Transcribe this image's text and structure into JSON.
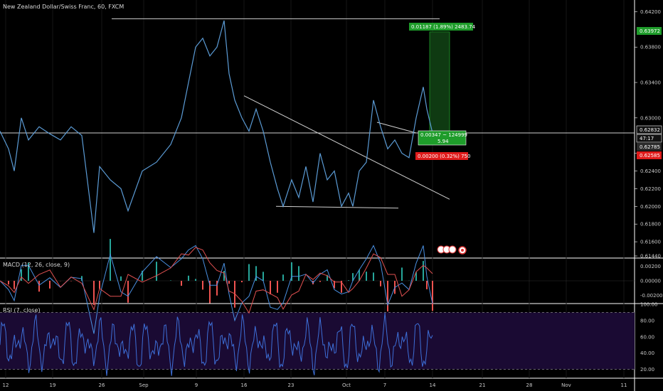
{
  "header": {
    "symbol_title": "New Zealand Dollar/Swiss Franc, 60, FXCM"
  },
  "colors": {
    "background": "#000000",
    "grid": "#2a2a2a",
    "candle_line": "#5b9bd5",
    "trendline": "#d0d0d0",
    "profit_zone": "#0f3a12",
    "profit_label": "#1e9c2a",
    "loss_label": "#e01b1b",
    "macd_line": "#4a90e2",
    "signal_line": "#e05050",
    "rsi_line": "#3d6fd8",
    "rsi_band": "#1a0a33"
  },
  "chart_data": [
    {
      "type": "line",
      "title": "New Zealand Dollar/Swiss Franc, 60, FXCM",
      "x_ticks": [
        "12",
        "19",
        "26",
        "Sep",
        "9",
        "16",
        "23",
        "Oct",
        "7",
        "14",
        "21",
        "28",
        "Nov",
        "11"
      ],
      "y_ticks": [
        "0.64200",
        "0.63800",
        "0.63400",
        "0.63000",
        "0.62600",
        "0.62400",
        "0.62200",
        "0.62000",
        "0.61800",
        "0.61600",
        "0.61440"
      ],
      "ylim": [
        0.6144,
        0.643
      ],
      "price_labels": {
        "target": "0.63972",
        "last": "0.62832",
        "countdown": "47:17",
        "entry": "0.62785",
        "stop": "0.62585"
      },
      "series": [
        {
          "x": [
            0,
            12,
            20,
            30,
            40,
            55,
            70,
            85,
            100,
            115,
            132,
            140,
            155,
            170,
            180,
            200,
            220,
            240,
            255,
            265,
            275,
            285,
            295,
            305,
            315,
            322,
            330,
            340,
            350,
            360,
            370,
            380,
            390,
            398,
            410,
            420,
            430,
            440,
            450,
            460,
            470,
            480,
            490,
            496,
            505,
            515,
            525,
            535,
            545,
            555,
            565,
            575,
            585,
            595,
            600,
            608
          ],
          "y": [
            0.6285,
            0.6265,
            0.624,
            0.63,
            0.6275,
            0.629,
            0.6282,
            0.6275,
            0.629,
            0.628,
            0.617,
            0.6245,
            0.623,
            0.622,
            0.6195,
            0.624,
            0.625,
            0.627,
            0.63,
            0.634,
            0.638,
            0.639,
            0.637,
            0.638,
            0.641,
            0.635,
            0.632,
            0.63,
            0.6285,
            0.631,
            0.6285,
            0.625,
            0.622,
            0.62,
            0.623,
            0.621,
            0.6245,
            0.6205,
            0.626,
            0.623,
            0.624,
            0.62,
            0.6215,
            0.62,
            0.624,
            0.625,
            0.632,
            0.629,
            0.6265,
            0.6275,
            0.626,
            0.6255,
            0.63,
            0.6335,
            0.631,
            0.6283
          ]
        }
      ]
    },
    {
      "type": "line",
      "title": "MACD (12, 26, close, 9)",
      "y_ticks": [
        "0.00200",
        "0.00000",
        "-0.00200"
      ]
    },
    {
      "type": "line",
      "title": "RSI (7, close)",
      "y_ticks": [
        "100.00",
        "80.00",
        "60.00",
        "40.00",
        "20.00"
      ]
    }
  ],
  "trade": {
    "target_text": "0.01187 (1.89%) 2483.74",
    "entry_text_line1": "0.00347 ~ 124999",
    "entry_text_line2": "5.94",
    "stop_text": "0.00200 (0.32%) 750"
  }
}
